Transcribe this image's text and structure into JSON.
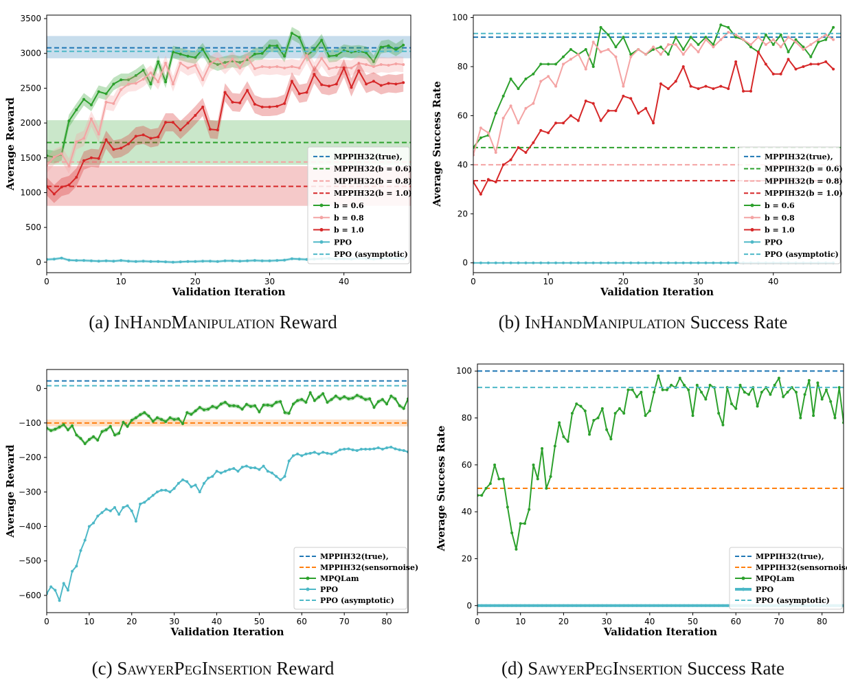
{
  "chart_data": [
    {
      "id": "a",
      "type": "line",
      "caption": {
        "label": "(a)",
        "env": "InHandManipulation",
        "metric": "Reward"
      },
      "xlabel": "Validation Iteration",
      "ylabel": "Average Reward",
      "xlim": [
        0,
        49
      ],
      "ylim": [
        -150,
        3550
      ],
      "xticks": [
        0,
        10,
        20,
        30,
        40
      ],
      "yticks": [
        0,
        500,
        1000,
        1500,
        2000,
        2500,
        3000,
        3500
      ],
      "hlines": [
        {
          "name": "MPPIH32(true),",
          "value": 3080,
          "color": "#1f77b4",
          "band": [
            2930,
            3250
          ]
        },
        {
          "name": "MPPIH32(b = 0.6)",
          "value": 1720,
          "color": "#2ca02c",
          "band": [
            1400,
            2040
          ]
        },
        {
          "name": "MPPIH32(b = 0.8)",
          "value": 1440,
          "color": "#f4a3a3",
          "band": null
        },
        {
          "name": "MPPIH32(b = 1.0)",
          "value": 1090,
          "color": "#d62728",
          "band": [
            810,
            1380
          ]
        }
      ],
      "series": [
        {
          "name": "b = 0.6",
          "color": "#2ca02c",
          "band": 90,
          "values": [
            1530,
            1510,
            1550,
            2030,
            2190,
            2340,
            2260,
            2450,
            2420,
            2560,
            2620,
            2620,
            2680,
            2760,
            2560,
            2880,
            2590,
            3020,
            2990,
            2960,
            2940,
            3060,
            2880,
            2840,
            2870,
            2890,
            2870,
            2910,
            2990,
            3000,
            3110,
            3110,
            2960,
            3290,
            3230,
            2970,
            3050,
            3190,
            2960,
            2970,
            3040,
            3020,
            3030,
            3010,
            2880,
            3090,
            3110,
            3050,
            3120
          ]
        },
        {
          "name": "b = 0.8",
          "color": "#f4a3a3",
          "band": 110,
          "values": [
            1390,
            1510,
            1560,
            1380,
            1730,
            1780,
            2060,
            1840,
            2300,
            2280,
            2480,
            2560,
            2570,
            2630,
            2720,
            2590,
            2860,
            2560,
            2860,
            2790,
            2830,
            2620,
            2850,
            2920,
            2810,
            2920,
            2790,
            2950,
            2780,
            2810,
            2800,
            2810,
            2790,
            2810,
            2790,
            2970,
            2760,
            2930,
            2780,
            2800,
            2800,
            2790,
            2860,
            2840,
            2810,
            2840,
            2830,
            2850,
            2840
          ]
        },
        {
          "name": "b = 1.0",
          "color": "#d62728",
          "band": 130,
          "values": [
            1090,
            980,
            1080,
            1110,
            1220,
            1460,
            1500,
            1490,
            1760,
            1620,
            1640,
            1700,
            1810,
            1830,
            1780,
            1800,
            2010,
            2010,
            1900,
            2000,
            2110,
            2230,
            1910,
            1900,
            2440,
            2300,
            2290,
            2470,
            2270,
            2230,
            2230,
            2240,
            2280,
            2600,
            2420,
            2440,
            2700,
            2550,
            2530,
            2560,
            2790,
            2510,
            2750,
            2560,
            2600,
            2540,
            2570,
            2560,
            2580
          ]
        },
        {
          "name": "PPO",
          "color": "#4db8c7",
          "band": 20,
          "values": [
            40,
            45,
            60,
            30,
            25,
            25,
            20,
            15,
            20,
            15,
            25,
            15,
            10,
            15,
            10,
            10,
            5,
            0,
            5,
            10,
            10,
            15,
            15,
            10,
            20,
            20,
            15,
            20,
            25,
            20,
            20,
            25,
            30,
            50,
            45,
            40,
            45,
            50,
            55,
            45,
            50,
            45,
            55,
            50,
            45,
            50,
            55,
            55,
            50
          ]
        },
        {
          "name": "PPO (asymptotic)",
          "color": "#4db8c7",
          "dashed": true,
          "value": 3030
        }
      ],
      "legend": {
        "position": "lower-right",
        "entries": [
          "MPPIH32(true),",
          "MPPIH32(b = 0.6)",
          "MPPIH32(b = 0.8)",
          "MPPIH32(b = 1.0)",
          "b = 0.6",
          "b = 0.8",
          "b = 1.0",
          "PPO",
          "PPO (asymptotic)"
        ]
      }
    },
    {
      "id": "b",
      "type": "line",
      "caption": {
        "label": "(b)",
        "env": "InHandManipulation",
        "metric": "Success Rate"
      },
      "xlabel": "Validation Iteration",
      "ylabel": "Average Success Rate",
      "xlim": [
        0,
        49
      ],
      "ylim": [
        -4,
        101
      ],
      "xticks": [
        0,
        10,
        20,
        30,
        40
      ],
      "yticks": [
        0,
        20,
        40,
        60,
        80,
        100
      ],
      "hlines": [
        {
          "name": "MPPIH32(true),",
          "value": 92,
          "color": "#1f77b4",
          "band": null
        },
        {
          "name": "MPPIH32(b = 0.6)",
          "value": 47,
          "color": "#2ca02c",
          "band": null
        },
        {
          "name": "MPPIH32(b = 0.8)",
          "value": 40,
          "color": "#f4a3a3",
          "band": null
        },
        {
          "name": "MPPIH32(b = 1.0)",
          "value": 33.5,
          "color": "#d62728",
          "band": null
        }
      ],
      "series": [
        {
          "name": "b = 0.6",
          "color": "#2ca02c",
          "band": 0,
          "values": [
            47,
            51,
            52,
            61,
            68,
            75,
            71,
            75,
            77,
            81,
            81,
            81,
            84,
            87,
            85,
            87,
            80,
            96,
            93,
            88,
            92,
            85,
            87,
            85,
            87,
            88,
            85,
            92,
            87,
            92,
            89,
            92,
            89,
            97,
            96,
            92,
            91,
            88,
            86,
            93,
            89,
            93,
            86,
            91,
            88,
            84,
            90,
            91,
            96
          ]
        },
        {
          "name": "b = 0.8",
          "color": "#f4a3a3",
          "band": 0,
          "values": [
            44,
            55,
            53,
            45,
            59,
            64,
            57,
            63,
            65,
            74,
            76,
            72,
            81,
            83,
            85,
            79,
            90,
            86,
            87,
            84,
            72,
            84,
            87,
            85,
            88,
            85,
            89,
            89,
            85,
            89,
            86,
            91,
            88,
            91,
            94,
            93,
            91,
            89,
            92,
            89,
            91,
            88,
            92,
            90,
            87,
            89,
            91,
            93,
            91
          ]
        },
        {
          "name": "b = 1.0",
          "color": "#d62728",
          "band": 0,
          "values": [
            33,
            28,
            34,
            33,
            40,
            42,
            47,
            45,
            49,
            54,
            53,
            57,
            57,
            60,
            58,
            66,
            65,
            58,
            62,
            62,
            68,
            67,
            61,
            63,
            57,
            73,
            71,
            74,
            80,
            72,
            71,
            72,
            71,
            72,
            71,
            82,
            70,
            70,
            86,
            81,
            77,
            77,
            83,
            79,
            80,
            81,
            81,
            82,
            79
          ]
        },
        {
          "name": "PPO",
          "color": "#4db8c7",
          "band": 0,
          "values": [
            0,
            0,
            0,
            0,
            0,
            0,
            0,
            0,
            0,
            0,
            0,
            0,
            0,
            0,
            0,
            0,
            0,
            0,
            0,
            0,
            0,
            0,
            0,
            0,
            0,
            0,
            0,
            0,
            0,
            0,
            0,
            0,
            0,
            0,
            0,
            0,
            0,
            0,
            0,
            0,
            0,
            0,
            0,
            0,
            0,
            0,
            0,
            0,
            0
          ]
        },
        {
          "name": "PPO (asymptotic)",
          "color": "#4db8c7",
          "dashed": true,
          "value": 93.5
        }
      ],
      "legend": {
        "position": "lower-right",
        "entries": [
          "MPPIH32(true),",
          "MPPIH32(b = 0.6)",
          "MPPIH32(b = 0.8)",
          "MPPIH32(b = 1.0)",
          "b = 0.6",
          "b = 0.8",
          "b = 1.0",
          "PPO",
          "PPO (asymptotic)"
        ]
      }
    },
    {
      "id": "c",
      "type": "line",
      "caption": {
        "label": "(c)",
        "env": "SawyerPegInsertion",
        "metric": "Reward"
      },
      "xlabel": "Validation Iteration",
      "ylabel": "Average Reward",
      "xlim": [
        0,
        85
      ],
      "ylim": [
        -650,
        55
      ],
      "xticks": [
        0,
        10,
        20,
        30,
        40,
        50,
        60,
        70,
        80
      ],
      "yticks": [
        0,
        -100,
        -200,
        -300,
        -400,
        -500,
        -600
      ],
      "hlines": [
        {
          "name": "MPPIH32(true),",
          "value": 22,
          "color": "#1f77b4",
          "band": null
        },
        {
          "name": "MPPIH32(sensornoise)",
          "value": -100,
          "color": "#ff7f0e",
          "band": [
            -110,
            -90
          ]
        }
      ],
      "series": [
        {
          "name": "MPQLam",
          "color": "#2ca02c",
          "band": 6,
          "values": [
            -115,
            -122,
            -118,
            -112,
            -105,
            -120,
            -108,
            -135,
            -145,
            -160,
            -148,
            -140,
            -150,
            -125,
            -120,
            -110,
            -135,
            -130,
            -98,
            -110,
            -92,
            -85,
            -76,
            -70,
            -80,
            -95,
            -85,
            -90,
            -96,
            -85,
            -90,
            -88,
            -102,
            -70,
            -75,
            -65,
            -55,
            -62,
            -60,
            -52,
            -56,
            -45,
            -40,
            -50,
            -50,
            -52,
            -60,
            -46,
            -52,
            -50,
            -68,
            -48,
            -48,
            -50,
            -40,
            -38,
            -70,
            -72,
            -45,
            -35,
            -32,
            -40,
            -12,
            -35,
            -25,
            -15,
            -40,
            -32,
            -22,
            -30,
            -24,
            -30,
            -28,
            -20,
            -25,
            -32,
            -30,
            -55,
            -38,
            -32,
            -45,
            -22,
            -30,
            -50,
            -58,
            -30
          ]
        },
        {
          "name": "PPO",
          "color": "#4db8c7",
          "band": 3,
          "values": [
            -595,
            -575,
            -585,
            -615,
            -565,
            -585,
            -530,
            -515,
            -470,
            -440,
            -400,
            -390,
            -370,
            -360,
            -350,
            -355,
            -345,
            -365,
            -345,
            -340,
            -355,
            -385,
            -335,
            -330,
            -320,
            -310,
            -300,
            -295,
            -295,
            -300,
            -290,
            -275,
            -265,
            -270,
            -285,
            -280,
            -300,
            -275,
            -260,
            -255,
            -240,
            -245,
            -240,
            -235,
            -232,
            -240,
            -228,
            -225,
            -230,
            -230,
            -235,
            -225,
            -240,
            -245,
            -255,
            -265,
            -255,
            -210,
            -195,
            -190,
            -195,
            -190,
            -188,
            -185,
            -190,
            -185,
            -188,
            -190,
            -185,
            -178,
            -176,
            -175,
            -178,
            -180,
            -176,
            -176,
            -176,
            -175,
            -172,
            -176,
            -172,
            -170,
            -175,
            -178,
            -180,
            -184
          ]
        },
        {
          "name": "PPO (asymptotic)",
          "color": "#4db8c7",
          "dashed": true,
          "value": 8
        }
      ],
      "legend": {
        "position": "lower-right",
        "entries": [
          "MPPIH32(true),",
          "MPPIH32(sensornoise)",
          "MPQLam",
          "PPO",
          "PPO (asymptotic)"
        ]
      }
    },
    {
      "id": "d",
      "type": "line",
      "caption": {
        "label": "(d)",
        "env": "SawyerPegInsertion",
        "metric": "Success Rate"
      },
      "xlabel": "Validation Iteration",
      "ylabel": "Average Success Rate",
      "xlim": [
        0,
        85
      ],
      "ylim": [
        -3,
        103
      ],
      "xticks": [
        0,
        10,
        20,
        30,
        40,
        50,
        60,
        70,
        80
      ],
      "yticks": [
        0,
        20,
        40,
        60,
        80,
        100
      ],
      "hlines": [
        {
          "name": "MPPIH32(true),",
          "value": 100,
          "color": "#1f77b4",
          "band": null
        },
        {
          "name": "MPPIH32(sensornoise)",
          "value": 50,
          "color": "#ff7f0e",
          "band": null
        }
      ],
      "series": [
        {
          "name": "MPQLam",
          "color": "#2ca02c",
          "band": 0,
          "values": [
            47,
            47,
            50,
            52,
            60,
            54,
            54,
            42,
            31,
            24,
            35,
            35,
            41,
            60,
            54,
            67,
            50,
            55,
            68,
            78,
            72,
            70,
            82,
            86,
            85,
            83,
            73,
            79,
            80,
            84,
            75,
            71,
            82,
            84,
            82,
            92,
            92,
            89,
            91,
            81,
            83,
            91,
            98,
            92,
            92,
            94,
            93,
            97,
            94,
            92,
            81,
            94,
            91,
            88,
            94,
            93,
            82,
            77,
            93,
            86,
            84,
            94,
            91,
            90,
            93,
            85,
            91,
            93,
            90,
            94,
            97,
            89,
            91,
            93,
            91,
            80,
            90,
            96,
            81,
            95,
            88,
            92,
            87,
            80,
            93,
            78
          ]
        },
        {
          "name": "PPO",
          "color": "#4db8c7",
          "band": 0,
          "thick": true,
          "values": [
            0,
            0,
            0,
            0,
            0,
            0,
            0,
            0,
            0,
            0,
            0,
            0,
            0,
            0,
            0,
            0,
            0,
            0,
            0,
            0,
            0,
            0,
            0,
            0,
            0,
            0,
            0,
            0,
            0,
            0,
            0,
            0,
            0,
            0,
            0,
            0,
            0,
            0,
            0,
            0,
            0,
            0,
            0,
            0,
            0,
            0,
            0,
            0,
            0,
            0,
            0,
            0,
            0,
            0,
            0,
            0,
            0,
            0,
            0,
            0,
            0,
            0,
            0,
            0,
            0,
            0,
            0,
            0,
            0,
            0,
            0,
            0,
            0,
            0,
            0,
            0,
            0,
            0,
            0,
            0,
            0,
            0,
            0,
            0,
            0,
            0
          ]
        },
        {
          "name": "PPO (asymptotic)",
          "color": "#4db8c7",
          "dashed": true,
          "value": 93
        }
      ],
      "legend": {
        "position": "lower-right",
        "entries": [
          "MPPIH32(true),",
          "MPPIH32(sensornoise)",
          "MPQLam",
          "PPO",
          "PPO (asymptotic)"
        ]
      }
    }
  ]
}
